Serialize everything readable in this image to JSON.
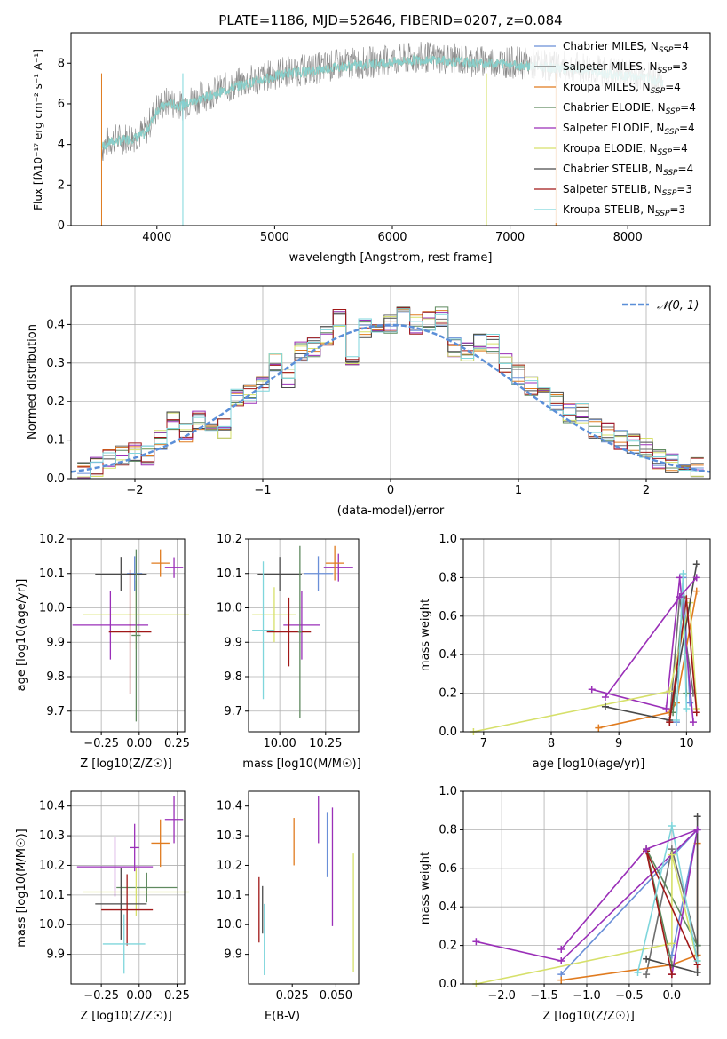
{
  "figure": {
    "title": "PLATE=1186, MJD=52646, FIBERID=0207, z=0.084"
  },
  "models": [
    {
      "name": "Chabrier MILES",
      "nssp": "4",
      "color": "#6a8fd8"
    },
    {
      "name": "Salpeter MILES",
      "nssp": "3",
      "color": "#6e6e6e"
    },
    {
      "name": "Kroupa MILES",
      "nssp": "4",
      "color": "#e07b1f"
    },
    {
      "name": "Chabrier ELODIE",
      "nssp": "4",
      "color": "#5f8a5f"
    },
    {
      "name": "Salpeter ELODIE",
      "nssp": "4",
      "color": "#9a2fb8"
    },
    {
      "name": "Kroupa ELODIE",
      "nssp": "4",
      "color": "#d6e06a"
    },
    {
      "name": "Chabrier STELIB",
      "nssp": "4",
      "color": "#4a4a4a"
    },
    {
      "name": "Salpeter STELIB",
      "nssp": "3",
      "color": "#a01818"
    },
    {
      "name": "Kroupa STELIB",
      "nssp": "3",
      "color": "#7fd6dc"
    }
  ],
  "chart_data": [
    {
      "id": "spectrum",
      "type": "line",
      "xlabel": "wavelength [Angstrom, rest frame]",
      "ylabel": "Flux [fλ10⁻¹⁷ erg cm⁻² s⁻¹ A⁻¹]",
      "xlim": [
        3270,
        8700
      ],
      "ylim": [
        0,
        9.5
      ],
      "xticks": [
        4000,
        5000,
        6000,
        7000,
        8000
      ],
      "yticks": [
        0,
        2,
        4,
        6,
        8
      ],
      "x": [
        3530,
        3600,
        3700,
        3800,
        3900,
        4000,
        4100,
        4200,
        4300,
        4500,
        4700,
        4900,
        5100,
        5300,
        5500,
        5700,
        5900,
        6100,
        6300,
        6500,
        6700,
        6900,
        7100,
        7300,
        7500,
        7700,
        7900,
        8100,
        8300
      ],
      "data_flux": [
        3.8,
        4.2,
        4.3,
        4.4,
        4.6,
        5.8,
        6.1,
        5.9,
        6.2,
        6.6,
        7.0,
        7.3,
        7.6,
        7.7,
        7.9,
        8.0,
        8.1,
        8.2,
        8.3,
        8.2,
        8.1,
        8.1,
        8.0,
        7.9,
        7.8,
        7.7,
        7.5,
        7.4,
        7.2
      ],
      "model_flux": [
        3.9,
        4.1,
        4.2,
        4.3,
        4.5,
        5.7,
        6.0,
        5.9,
        6.1,
        6.5,
        6.9,
        7.2,
        7.5,
        7.6,
        7.8,
        7.9,
        8.0,
        8.1,
        8.2,
        8.1,
        8.0,
        8.0,
        7.9,
        7.8,
        7.7,
        7.6,
        7.4,
        7.3,
        7.1
      ],
      "legend_position": "right"
    },
    {
      "id": "residuals",
      "type": "line",
      "xlabel": "(data-model)/error",
      "ylabel": "Normed distribution",
      "xlim": [
        -2.5,
        2.5
      ],
      "ylim": [
        0,
        0.5
      ],
      "xticks": [
        -2,
        -1,
        0,
        1,
        2
      ],
      "yticks": [
        0.0,
        0.1,
        0.2,
        0.3,
        0.4
      ],
      "bin_centers": [
        -2.4,
        -2.3,
        -2.2,
        -2.1,
        -2.0,
        -1.9,
        -1.8,
        -1.7,
        -1.6,
        -1.5,
        -1.4,
        -1.3,
        -1.2,
        -1.1,
        -1.0,
        -0.9,
        -0.8,
        -0.7,
        -0.6,
        -0.5,
        -0.4,
        -0.3,
        -0.2,
        -0.1,
        0.0,
        0.1,
        0.2,
        0.3,
        0.4,
        0.5,
        0.6,
        0.7,
        0.8,
        0.9,
        1.0,
        1.1,
        1.2,
        1.3,
        1.4,
        1.5,
        1.6,
        1.7,
        1.8,
        1.9,
        2.0,
        2.1,
        2.2,
        2.3,
        2.4
      ],
      "hist_values": [
        0.02,
        0.03,
        0.05,
        0.06,
        0.07,
        0.06,
        0.1,
        0.15,
        0.12,
        0.15,
        0.15,
        0.13,
        0.21,
        0.22,
        0.24,
        0.3,
        0.26,
        0.33,
        0.34,
        0.37,
        0.42,
        0.32,
        0.39,
        0.39,
        0.4,
        0.42,
        0.4,
        0.41,
        0.42,
        0.34,
        0.33,
        0.35,
        0.35,
        0.3,
        0.27,
        0.24,
        0.22,
        0.2,
        0.17,
        0.17,
        0.13,
        0.12,
        0.1,
        0.09,
        0.08,
        0.05,
        0.04,
        0.04,
        0.03
      ],
      "series": [
        {
          "name": "𝒩(0, 1)",
          "color": "#5b8fd8",
          "style": "dashed"
        }
      ],
      "legend_position": "top-right"
    },
    {
      "id": "age_vs_Z",
      "type": "scatter",
      "xlabel": "Z [log10(Z/Z☉)]",
      "ylabel": "age [log10(age/yr)]",
      "xlim": [
        -0.45,
        0.3
      ],
      "ylim": [
        9.64,
        10.2
      ],
      "xticks": [
        -0.25,
        0.0,
        0.25
      ],
      "xtick_labels": [
        "−0.25",
        "0.00",
        "0.25"
      ],
      "yticks": [
        9.7,
        9.8,
        9.9,
        10.0,
        10.1,
        10.2
      ],
      "ytick_labels": [
        "9.7",
        "9.8",
        "9.9",
        "10.0",
        "10.1",
        "10.2"
      ],
      "points": [
        {
          "x": 0.23,
          "y": 10.117,
          "xerr": 0.06,
          "yerr": 0.03,
          "c": 4
        },
        {
          "x": 0.14,
          "y": 10.13,
          "xerr": 0.06,
          "yerr": 0.04,
          "c": 2
        },
        {
          "x": -0.03,
          "y": 10.1,
          "xerr": 0.05,
          "yerr": 0.05,
          "c": 0
        },
        {
          "x": -0.12,
          "y": 10.098,
          "xerr": 0.17,
          "yerr": 0.05,
          "c": 6
        },
        {
          "x": -0.02,
          "y": 9.98,
          "xerr": 0.35,
          "yerr": 0.1,
          "c": 5
        },
        {
          "x": -0.19,
          "y": 9.95,
          "xerr": 0.25,
          "yerr": 0.1,
          "c": 4
        },
        {
          "x": -0.06,
          "y": 9.93,
          "xerr": 0.14,
          "yerr": 0.18,
          "c": 7
        },
        {
          "x": -0.02,
          "y": 9.92,
          "xerr": 0.03,
          "yerr": 0.25,
          "c": 3
        }
      ]
    },
    {
      "id": "age_vs_mass",
      "type": "scatter",
      "xlabel": "mass [log10(M/M☉)]",
      "xlim": [
        9.83,
        10.43
      ],
      "ylim": [
        9.64,
        10.2
      ],
      "xticks": [
        10.0,
        10.25
      ],
      "xtick_labels": [
        "10.00",
        "10.25"
      ],
      "yticks": [
        9.7,
        9.8,
        9.9,
        10.0,
        10.1,
        10.2
      ],
      "ytick_labels": [
        "9.7",
        "9.8",
        "9.9",
        "10.0",
        "10.1",
        "10.2"
      ],
      "points": [
        {
          "x": 10.32,
          "y": 10.117,
          "xerr": 0.08,
          "yerr": 0.04,
          "c": 4
        },
        {
          "x": 10.3,
          "y": 10.13,
          "xerr": 0.05,
          "yerr": 0.05,
          "c": 2
        },
        {
          "x": 10.21,
          "y": 10.1,
          "xerr": 0.08,
          "yerr": 0.05,
          "c": 0
        },
        {
          "x": 10.0,
          "y": 10.098,
          "xerr": 0.12,
          "yerr": 0.05,
          "c": 6
        },
        {
          "x": 9.97,
          "y": 9.98,
          "xerr": 0.12,
          "yerr": 0.08,
          "c": 5
        },
        {
          "x": 10.12,
          "y": 9.95,
          "xerr": 0.1,
          "yerr": 0.1,
          "c": 4
        },
        {
          "x": 10.05,
          "y": 9.93,
          "xerr": 0.12,
          "yerr": 0.1,
          "c": 7
        },
        {
          "x": 9.91,
          "y": 9.935,
          "xerr": 0.06,
          "yerr": 0.2,
          "c": 8
        },
        {
          "x": 10.11,
          "y": 9.93,
          "xerr": 0.01,
          "yerr": 0.25,
          "c": 3
        }
      ]
    },
    {
      "id": "weight_vs_age",
      "type": "line",
      "xlabel": "age [log10(age/yr)]",
      "ylabel": "mass weight",
      "xlim": [
        6.7,
        10.35
      ],
      "ylim": [
        0.0,
        1.0
      ],
      "xticks": [
        7,
        8,
        9,
        10
      ],
      "yticks": [
        0.0,
        0.2,
        0.4,
        0.6,
        0.8,
        1.0
      ],
      "ytick_labels": [
        "0.0",
        "0.2",
        "0.4",
        "0.6",
        "0.8",
        "1.0"
      ]
    },
    {
      "id": "mass_vs_Z",
      "type": "scatter",
      "xlabel": "Z [log10(Z/Z☉)]",
      "ylabel": "mass [log10(M/M☉)]",
      "xlim": [
        -0.45,
        0.3
      ],
      "ylim": [
        9.8,
        10.45
      ],
      "xticks": [
        -0.25,
        0.0,
        0.25
      ],
      "xtick_labels": [
        "−0.25",
        "0.00",
        "0.25"
      ],
      "yticks": [
        9.9,
        10.0,
        10.1,
        10.2,
        10.3,
        10.4
      ],
      "ytick_labels": [
        "9.9",
        "10.0",
        "10.1",
        "10.2",
        "10.3",
        "10.4"
      ],
      "points": [
        {
          "x": 0.23,
          "y": 10.355,
          "xerr": 0.06,
          "yerr": 0.08,
          "c": 4
        },
        {
          "x": 0.14,
          "y": 10.275,
          "xerr": 0.06,
          "yerr": 0.08,
          "c": 2
        },
        {
          "x": -0.03,
          "y": 10.26,
          "xerr": 0.03,
          "yerr": 0.08,
          "c": 4
        },
        {
          "x": -0.16,
          "y": 10.195,
          "xerr": 0.25,
          "yerr": 0.1,
          "c": 4
        },
        {
          "x": 0.05,
          "y": 10.125,
          "xerr": 0.2,
          "yerr": 0.05,
          "c": 3
        },
        {
          "x": -0.02,
          "y": 10.11,
          "xerr": 0.35,
          "yerr": 0.08,
          "c": 5
        },
        {
          "x": -0.12,
          "y": 10.07,
          "xerr": 0.17,
          "yerr": 0.12,
          "c": 6
        },
        {
          "x": -0.08,
          "y": 10.05,
          "xerr": 0.17,
          "yerr": 0.12,
          "c": 7
        },
        {
          "x": -0.1,
          "y": 9.935,
          "xerr": 0.14,
          "yerr": 0.1,
          "c": 8
        }
      ]
    },
    {
      "id": "mass_vs_ebv",
      "type": "scatter",
      "xlabel": "E(B-V)",
      "xlim": [
        0.0,
        0.063
      ],
      "ylim": [
        9.8,
        10.45
      ],
      "xticks": [
        0.025,
        0.05
      ],
      "xtick_labels": [
        "0.025",
        "0.050"
      ],
      "yticks": [
        9.9,
        10.0,
        10.1,
        10.2,
        10.3,
        10.4
      ],
      "ytick_labels": [
        "9.9",
        "10.0",
        "10.1",
        "10.2",
        "10.3",
        "10.4"
      ],
      "points": [
        {
          "x": 0.04,
          "y": 10.355,
          "yerr": 0.08,
          "c": 4
        },
        {
          "x": 0.026,
          "y": 10.28,
          "yerr": 0.08,
          "c": 2
        },
        {
          "x": 0.045,
          "y": 10.27,
          "yerr": 0.11,
          "c": 0
        },
        {
          "x": 0.048,
          "y": 10.195,
          "yerr": 0.2,
          "c": 4
        },
        {
          "x": 0.06,
          "y": 10.04,
          "yerr": 0.2,
          "c": 5
        },
        {
          "x": 0.008,
          "y": 10.05,
          "yerr": 0.08,
          "c": 6
        },
        {
          "x": 0.006,
          "y": 10.05,
          "yerr": 0.11,
          "c": 7
        },
        {
          "x": 0.009,
          "y": 9.95,
          "yerr": 0.12,
          "c": 8
        }
      ]
    },
    {
      "id": "weight_vs_Z",
      "type": "line",
      "xlabel": "Z [log10(Z/Z☉)]",
      "ylabel": "mass weight",
      "xlim": [
        -2.45,
        0.45
      ],
      "ylim": [
        0.0,
        1.0
      ],
      "xticks": [
        -2.0,
        -1.5,
        -1.0,
        -0.5,
        0.0
      ],
      "xtick_labels": [
        "−2.0",
        "−1.5",
        "−1.0",
        "−0.5",
        "0.0"
      ],
      "yticks": [
        0.0,
        0.2,
        0.4,
        0.6,
        0.8,
        1.0
      ],
      "ytick_labels": [
        "0.0",
        "0.2",
        "0.4",
        "0.6",
        "0.8",
        "1.0"
      ]
    }
  ],
  "sfh_series": [
    {
      "c": 0,
      "age": [
        9.85,
        9.95,
        10.05
      ],
      "Z": [
        -1.3,
        0.3,
        0.0
      ],
      "w": [
        0.05,
        0.8,
        0.15
      ]
    },
    {
      "c": 1,
      "age": [
        9.75,
        9.9,
        10.1
      ],
      "Z": [
        -0.3,
        0.0,
        0.3
      ],
      "w": [
        0.05,
        0.7,
        0.2
      ]
    },
    {
      "c": 2,
      "age": [
        8.7,
        9.75,
        9.85,
        10.15
      ],
      "Z": [
        -1.3,
        0.0,
        0.3,
        0.3
      ],
      "w": [
        0.02,
        0.1,
        0.15,
        0.73
      ]
    },
    {
      "c": 3,
      "age": [
        9.8,
        9.95,
        10.0
      ],
      "Z": [
        0.0,
        -0.3,
        0.3
      ],
      "w": [
        0.1,
        0.7,
        0.2
      ]
    },
    {
      "c": 4,
      "age": [
        8.6,
        9.7,
        9.9,
        10.1
      ],
      "Z": [
        -2.3,
        -1.3,
        0.3,
        0.0
      ],
      "w": [
        0.22,
        0.12,
        0.8,
        0.05
      ]
    },
    {
      "c": 5,
      "age": [
        6.85,
        9.75,
        10.05,
        10.15
      ],
      "Z": [
        -2.3,
        0.0,
        0.0,
        0.3
      ],
      "w": [
        0.0,
        0.21,
        0.67,
        0.12
      ]
    },
    {
      "c": 6,
      "age": [
        8.8,
        9.75,
        10.15
      ],
      "Z": [
        -0.3,
        0.3,
        0.3
      ],
      "w": [
        0.13,
        0.06,
        0.87
      ]
    },
    {
      "c": 7,
      "age": [
        9.75,
        10.0,
        10.15
      ],
      "Z": [
        0.0,
        -0.3,
        0.3
      ],
      "w": [
        0.05,
        0.69,
        0.1
      ]
    },
    {
      "c": 8,
      "age": [
        9.85,
        9.95,
        10.0
      ],
      "Z": [
        -0.4,
        0.0,
        0.3
      ],
      "w": [
        0.06,
        0.82,
        0.12
      ]
    },
    {
      "c": 4,
      "age": [
        8.8,
        9.9,
        10.15
      ],
      "Z": [
        -1.3,
        -0.3,
        0.3
      ],
      "w": [
        0.18,
        0.7,
        0.8
      ]
    }
  ]
}
